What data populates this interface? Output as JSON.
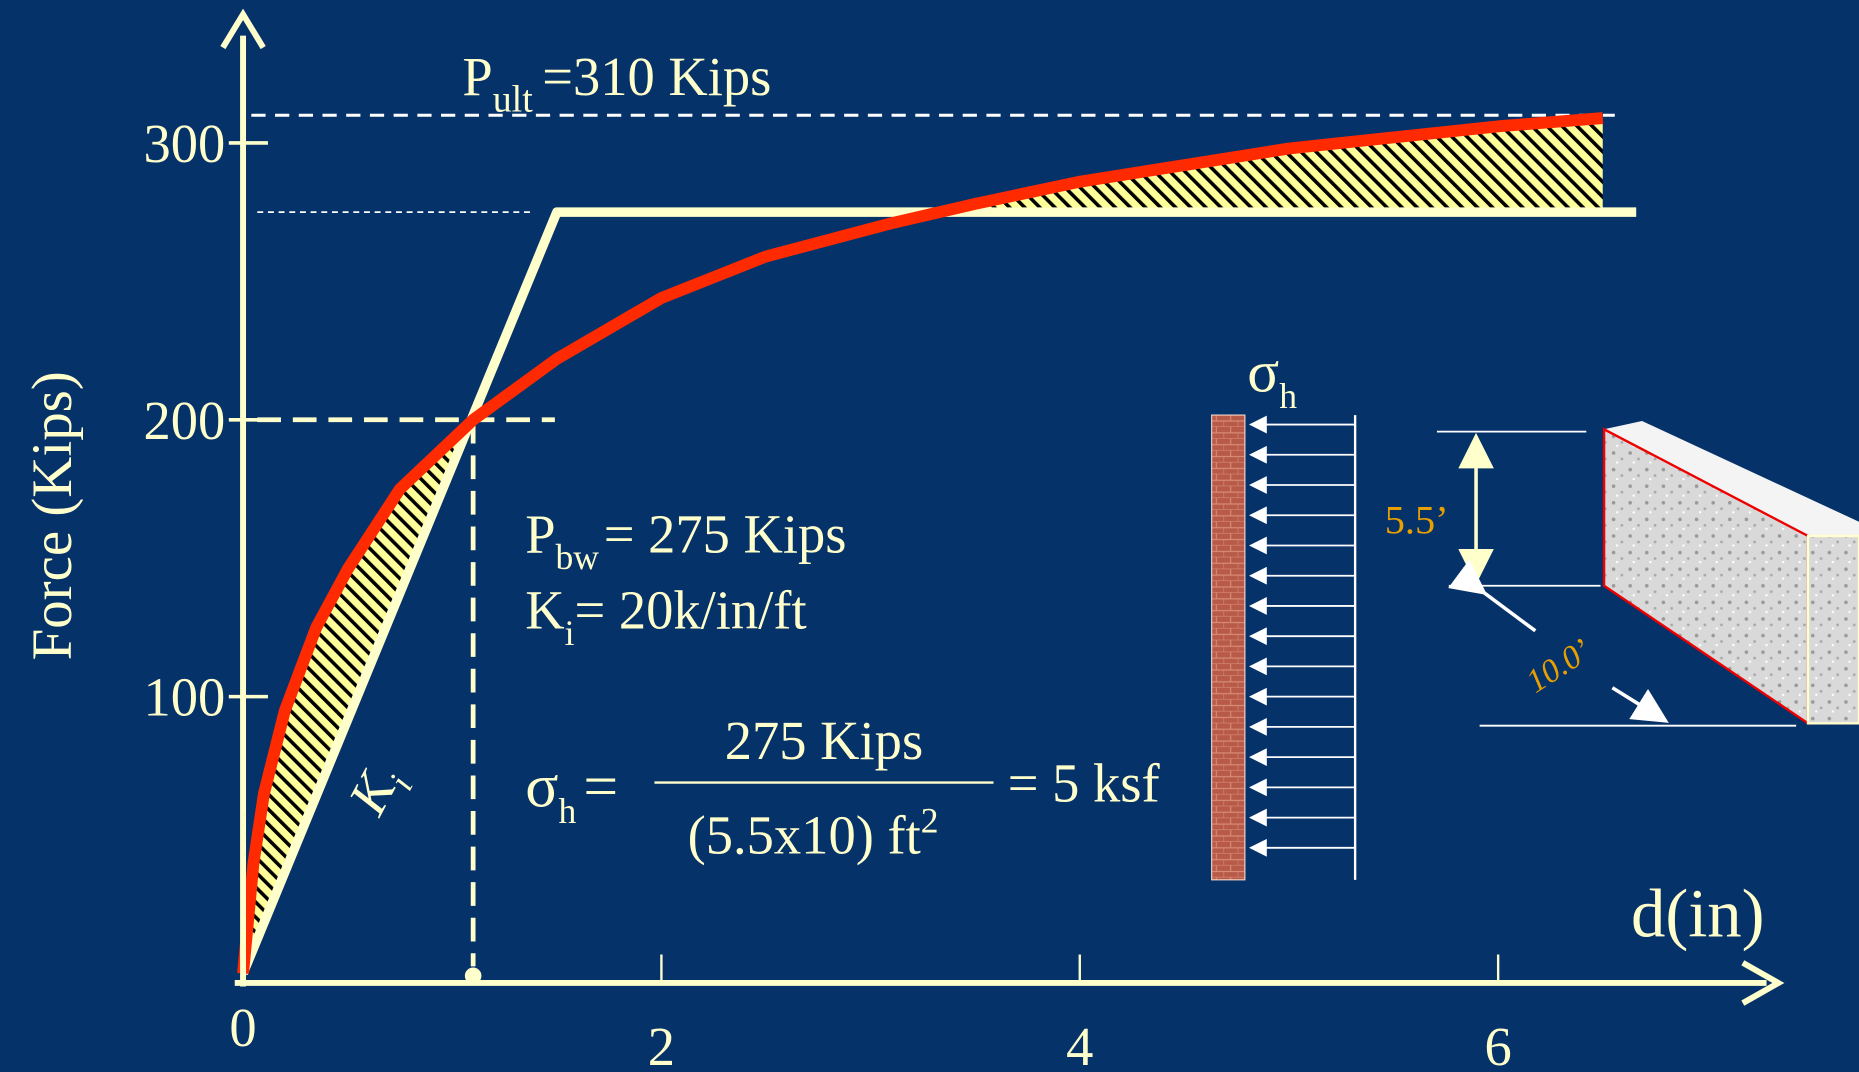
{
  "chart_data": {
    "type": "line",
    "xlabel": "d(in)",
    "ylabel": "Force (Kips)",
    "xlim": [
      0,
      7.3
    ],
    "ylim": [
      0,
      345
    ],
    "xticks": [
      0,
      2,
      4,
      6
    ],
    "yticks": [
      100,
      200,
      300
    ],
    "series": [
      {
        "color": "#ff2a00",
        "x": [
          0,
          0.05,
          0.1,
          0.2,
          0.35,
          0.5,
          0.75,
          1.1,
          1.5,
          2,
          2.5,
          3.1,
          3.5,
          4,
          4.5,
          5,
          5.5,
          6,
          6.5
        ],
        "values": [
          0,
          40,
          65,
          95,
          125,
          146,
          175,
          200,
          222,
          244,
          259,
          271,
          278,
          286,
          292,
          298,
          302,
          306,
          309
        ]
      },
      {
        "color": "#ffffcc",
        "x": [
          0,
          1.5,
          6.66
        ],
        "values": [
          0,
          275,
          275
        ]
      }
    ],
    "ultimate": {
      "symbol": "P",
      "subscript": "ult",
      "text": "=310 Kips",
      "value": 310
    },
    "yield_point": {
      "x": 1.1,
      "value": 200
    },
    "initial_stiffness": {
      "symbol": "K",
      "subscript": "i"
    },
    "notes": [
      {
        "symbol": "P",
        "subscript": "bw",
        "text": "= 275 Kips"
      },
      {
        "symbol": "K",
        "subscript": "i",
        "text": "= 20k/in/ft"
      }
    ],
    "stress_formula": {
      "symbol": "σ",
      "subscript": "h",
      "equals": "=",
      "numerator": "275 Kips",
      "denominator": "(5.5x10) ft",
      "superscript": "2",
      "result": "= 5 ksf"
    }
  },
  "wall_diagram": {
    "pressure": {
      "symbol": "σ",
      "subscript": "h"
    },
    "height": "5.5’",
    "length": "10.0’"
  }
}
